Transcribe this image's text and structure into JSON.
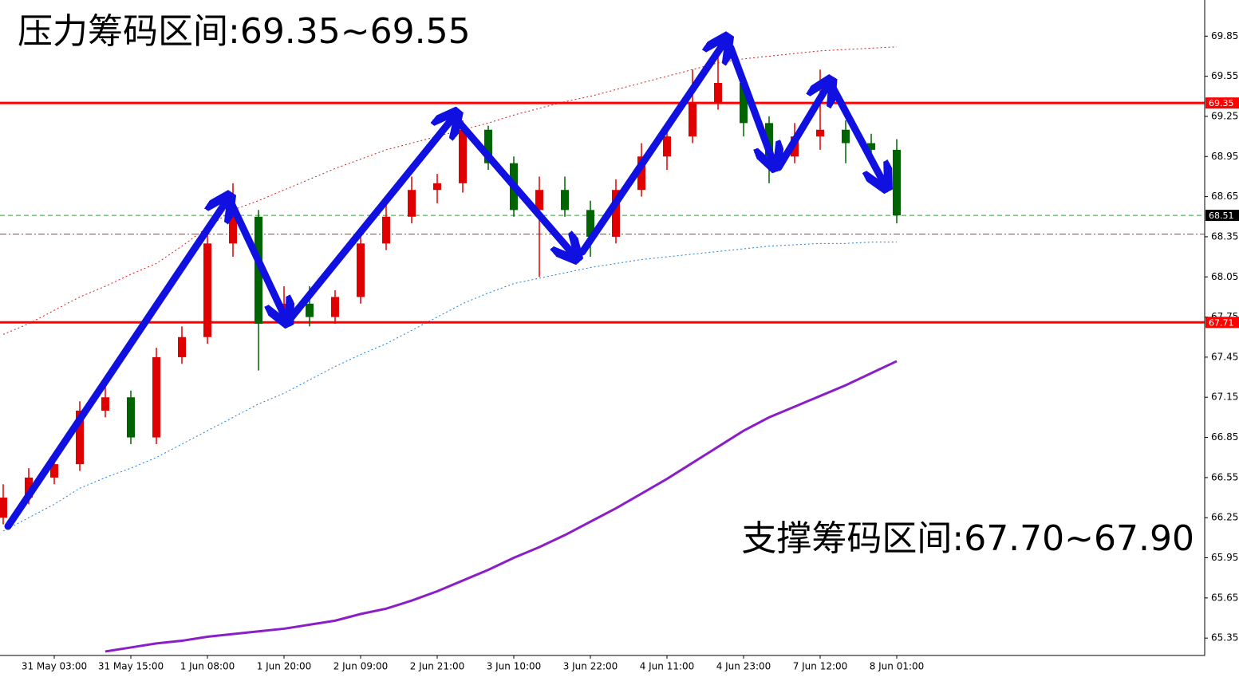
{
  "chart_data": {
    "type": "candlestick",
    "annotations": [
      "压力筹码区间:69.35~69.55",
      "支撑筹码区间:67.70~67.90"
    ],
    "categories": [
      null,
      null,
      "31 May 03:00",
      null,
      null,
      "31 May 15:00",
      null,
      null,
      "1 Jun 08:00",
      null,
      null,
      "1 Jun 20:00",
      null,
      null,
      "2 Jun 09:00",
      null,
      null,
      "2 Jun 21:00",
      null,
      null,
      "3 Jun 10:00",
      null,
      null,
      "3 Jun 22:00",
      null,
      null,
      "4 Jun 11:00",
      null,
      null,
      "4 Jun 23:00",
      null,
      null,
      "7 Jun 12:00",
      null,
      null,
      "8 Jun 01:00"
    ],
    "open": [
      66.25,
      66.4,
      66.55,
      66.65,
      67.05,
      67.15,
      66.85,
      67.45,
      67.6,
      68.3,
      68.5,
      67.7,
      67.85,
      67.75,
      67.9,
      68.3,
      68.5,
      68.7,
      68.75,
      69.15,
      68.9,
      68.55,
      68.7,
      68.55,
      68.35,
      68.7,
      68.95,
      69.1,
      69.35,
      69.5,
      69.2,
      68.95,
      69.1,
      69.15,
      69.05,
      69.0
    ],
    "high": [
      66.5,
      66.62,
      66.72,
      67.12,
      67.28,
      67.2,
      67.52,
      67.68,
      68.42,
      68.75,
      68.55,
      67.98,
      67.98,
      67.95,
      68.38,
      68.6,
      68.8,
      68.82,
      69.22,
      69.18,
      68.95,
      68.8,
      68.8,
      68.62,
      68.78,
      69.05,
      69.2,
      69.6,
      69.85,
      69.55,
      69.25,
      69.2,
      69.6,
      69.22,
      69.12,
      69.08
    ],
    "low": [
      66.2,
      66.35,
      66.5,
      66.6,
      67.0,
      66.8,
      66.8,
      67.4,
      67.55,
      68.2,
      67.35,
      67.68,
      67.68,
      67.7,
      67.85,
      68.25,
      68.45,
      68.6,
      68.68,
      68.85,
      68.5,
      68.05,
      68.5,
      68.2,
      68.3,
      68.65,
      68.85,
      69.05,
      69.3,
      69.1,
      68.75,
      68.9,
      69.0,
      68.9,
      68.95,
      68.45
    ],
    "close": [
      66.4,
      66.55,
      66.65,
      67.05,
      67.15,
      66.85,
      67.45,
      67.6,
      68.3,
      68.5,
      67.7,
      67.85,
      67.75,
      67.9,
      68.3,
      68.5,
      68.7,
      68.75,
      69.15,
      68.9,
      68.55,
      68.7,
      68.55,
      68.35,
      68.7,
      68.95,
      69.1,
      69.35,
      69.5,
      69.2,
      68.95,
      69.1,
      69.15,
      69.05,
      69.0,
      68.51
    ],
    "up_color": "#e00000",
    "down_color": "#006400",
    "lines": [
      {
        "color": "#8a1fc8",
        "dash": "none",
        "values": [
          null,
          null,
          null,
          null,
          65.25,
          65.28,
          65.31,
          65.33,
          65.36,
          65.38,
          65.4,
          65.42,
          65.45,
          65.48,
          65.53,
          65.57,
          65.63,
          65.7,
          65.78,
          65.86,
          65.95,
          66.03,
          66.12,
          66.22,
          66.32,
          66.43,
          66.54,
          66.66,
          66.78,
          66.9,
          67.0,
          67.08,
          67.16,
          67.24,
          67.33,
          67.42
        ]
      },
      {
        "color": "#1e7fd8",
        "dash": "2 3",
        "values": [
          66.15,
          66.25,
          66.35,
          66.47,
          66.55,
          66.62,
          66.7,
          66.8,
          66.9,
          67.0,
          67.1,
          67.18,
          67.28,
          67.38,
          67.47,
          67.55,
          67.65,
          67.75,
          67.85,
          67.93,
          68.0,
          68.04,
          68.08,
          68.12,
          68.15,
          68.18,
          68.2,
          68.22,
          68.24,
          68.26,
          68.28,
          68.29,
          68.3,
          68.3,
          68.31,
          68.31
        ]
      },
      {
        "color": "#d02020",
        "dash": "2 3",
        "values": [
          67.62,
          67.7,
          67.8,
          67.9,
          67.98,
          68.07,
          68.15,
          68.28,
          68.42,
          68.55,
          68.62,
          68.7,
          68.78,
          68.86,
          68.93,
          69.0,
          69.05,
          69.1,
          69.15,
          69.2,
          69.26,
          69.31,
          69.36,
          69.4,
          69.45,
          69.5,
          69.55,
          69.6,
          69.65,
          69.68,
          69.7,
          69.72,
          69.74,
          69.75,
          69.76,
          69.77
        ]
      }
    ],
    "levels": [
      {
        "value": 69.35,
        "color": "#ff0000",
        "style": "solid",
        "tag_color": "#ff0000"
      },
      {
        "value": 67.71,
        "color": "#ff0000",
        "style": "solid",
        "tag_color": "#ff0000"
      },
      {
        "value": 68.51,
        "color": "#3a9a3a",
        "style": "dash",
        "tag_color": "#000000"
      },
      {
        "value": 68.37,
        "color": "#d02020",
        "style": "dashdot"
      }
    ],
    "ylim": [
      65.22,
      70.12
    ],
    "yticks": [
      65.35,
      65.65,
      65.95,
      66.25,
      66.55,
      66.85,
      67.15,
      67.45,
      67.75,
      68.05,
      68.35,
      68.65,
      68.95,
      69.25,
      69.55,
      69.85
    ]
  }
}
